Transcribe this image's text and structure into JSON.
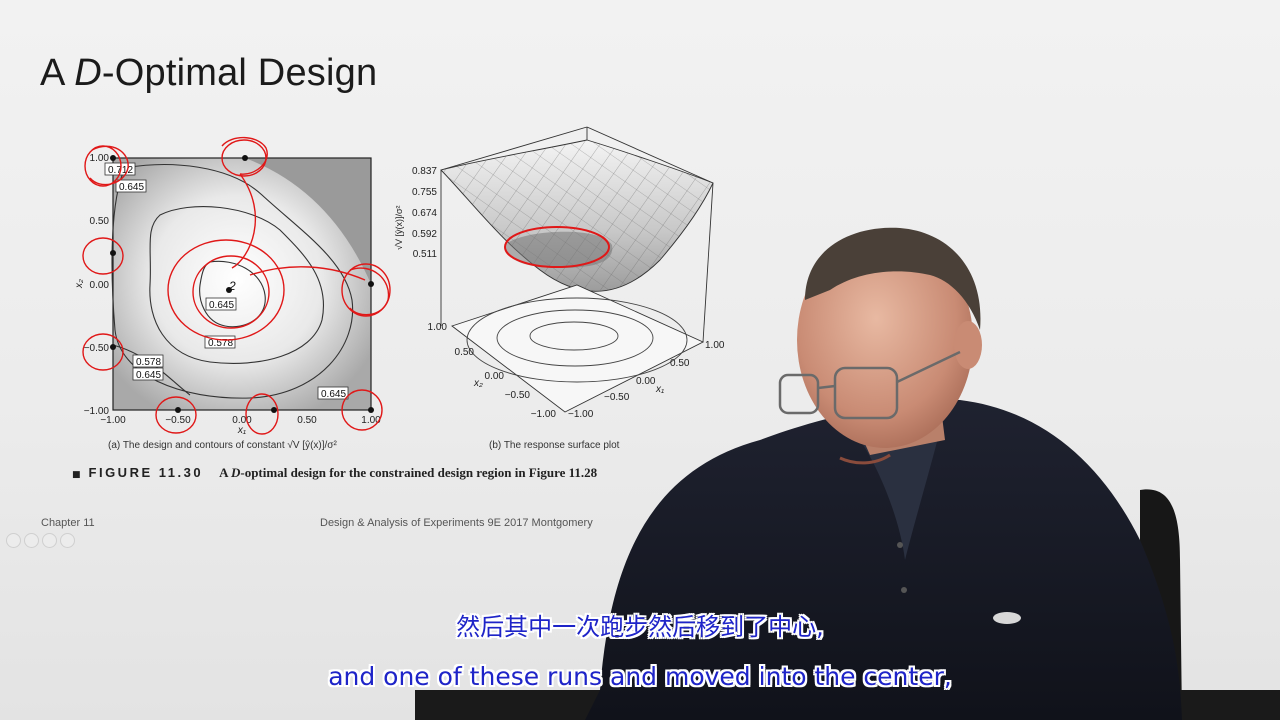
{
  "slide": {
    "title_prefix": "A ",
    "title_italic": "D",
    "title_suffix": "-Optimal Design",
    "figure_label": "FIGURE 11.30",
    "figure_caption_a": "A ",
    "figure_caption_italic": "D",
    "figure_caption_b": "-optimal design for the constrained design region in Figure 11.28",
    "footer_left": "Chapter 11",
    "footer_center": "Design & Analysis of Experiments 9E 2017 Montgomery"
  },
  "contour_plot": {
    "caption": "(a) The design and contours of constant √V [ŷ(x)]/σ²",
    "xlabel": "x₁",
    "ylabel": "x₂",
    "x_ticks": [
      "−1.00",
      "−0.50",
      "0.00",
      "0.50",
      "1.00"
    ],
    "y_ticks": [
      "1.00",
      "0.50",
      "0.00",
      "−0.50",
      "−1.00"
    ],
    "contour_labels": [
      "0.712",
      "0.645",
      "0.645",
      "0.578",
      "0.578",
      "0.645",
      "0.645"
    ],
    "annotation": "2"
  },
  "surface_plot": {
    "caption": "(b) The response surface plot",
    "z_ticks": [
      "0.837",
      "0.755",
      "0.674",
      "0.592",
      "0.511"
    ],
    "zlabel": "√V [ŷ(x)]/σ²",
    "x1_ticks": [
      "1.00",
      "0.50",
      "0.00",
      "−0.50",
      "−1.00"
    ],
    "x2_ticks": [
      "1.00",
      "0.50",
      "0.00",
      "−0.50",
      "−1.00"
    ],
    "x1_label": "x₁",
    "x2_label": "x₂"
  },
  "subtitles": {
    "chinese": "然后其中一次跑步然后移到了中心,",
    "english": "and one of these runs and moved into the center,"
  },
  "colors": {
    "annotation_ink": "#e01818",
    "subtitle": "#1e24c8"
  }
}
